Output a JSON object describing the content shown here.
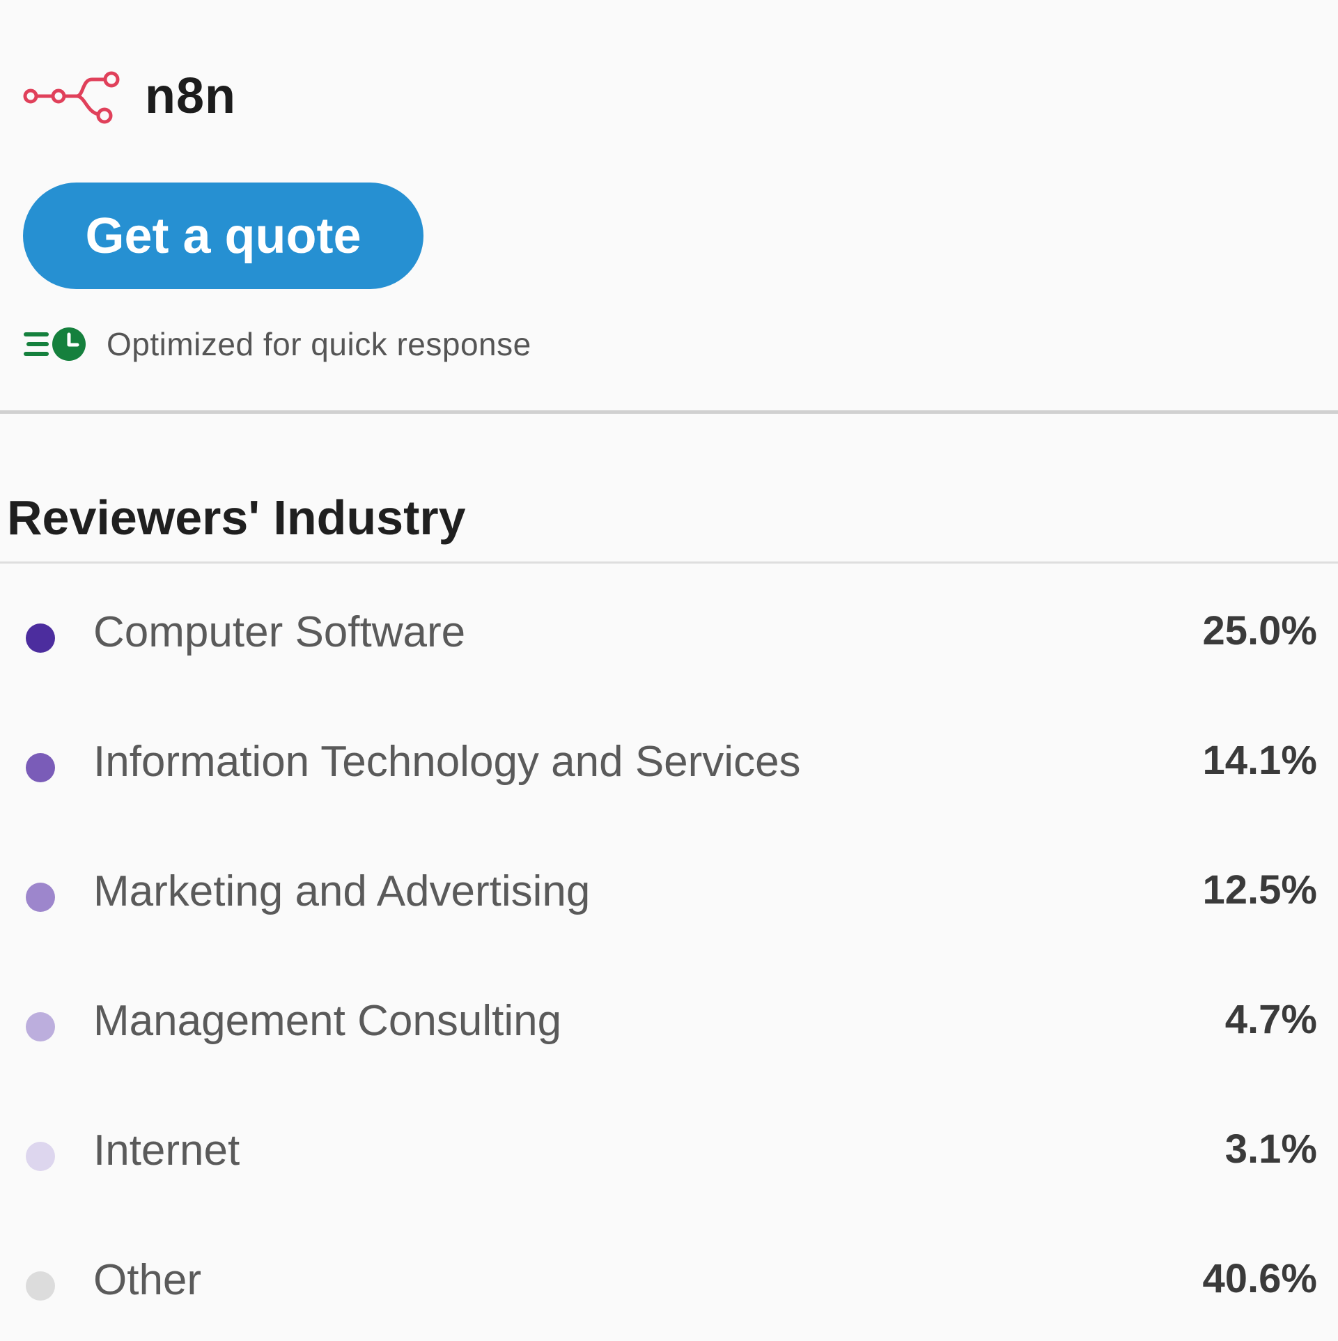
{
  "product": {
    "name": "n8n",
    "logo_icon": "n8n-logo-icon",
    "logo_color": "#e0405a"
  },
  "cta": {
    "label": "Get a quote",
    "color": "#2690d2"
  },
  "response_badge": {
    "icon": "quick-response-clock-icon",
    "text": "Optimized for quick response",
    "icon_color": "#15803d"
  },
  "section": {
    "title": "Reviewers' Industry"
  },
  "industries": [
    {
      "label": "Computer Software",
      "value": "25.0%",
      "color": "#4c2d9e"
    },
    {
      "label": "Information Technology and Services",
      "value": "14.1%",
      "color": "#7a5cb8"
    },
    {
      "label": "Marketing and Advertising",
      "value": "12.5%",
      "color": "#9d86cc"
    },
    {
      "label": "Management Consulting",
      "value": "4.7%",
      "color": "#bcaedd"
    },
    {
      "label": "Internet",
      "value": "3.1%",
      "color": "#ddd6ee"
    },
    {
      "label": "Other",
      "value": "40.6%",
      "color": "#dcdcdc"
    }
  ]
}
